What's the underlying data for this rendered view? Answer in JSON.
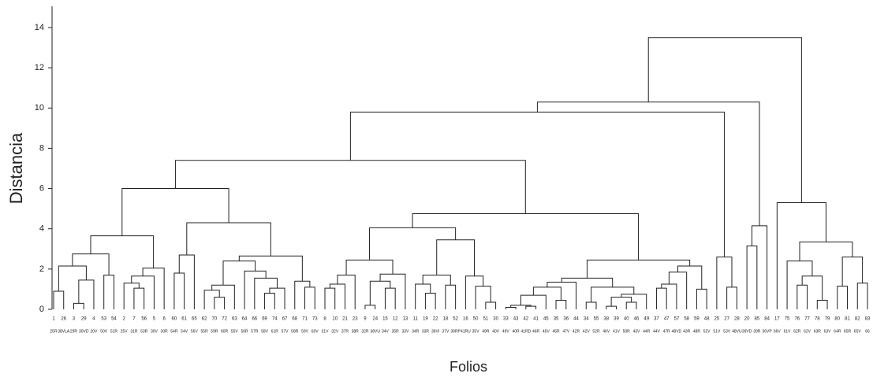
{
  "chart_data": {
    "type": "dendrogram",
    "xlabel": "Folios",
    "ylabel": "Distancia",
    "ylim": [
      0,
      15
    ],
    "yticks": [
      0,
      2,
      4,
      6,
      8,
      10,
      12,
      14
    ],
    "color": "#222222",
    "leaves": [
      "1",
      "26",
      "3",
      "29",
      "4",
      "53",
      "54",
      "2",
      "7",
      "56",
      "5",
      "6",
      "60",
      "61",
      "65",
      "62",
      "70",
      "72",
      "63",
      "64",
      "66",
      "69",
      "74",
      "67",
      "68",
      "71",
      "73",
      "8",
      "10",
      "21",
      "23",
      "9",
      "24",
      "15",
      "12",
      "13",
      "11",
      "19",
      "22",
      "18",
      "52",
      "16",
      "50",
      "51",
      "30",
      "33",
      "43",
      "42",
      "41",
      "45",
      "35",
      "36",
      "44",
      "34",
      "55",
      "38",
      "39",
      "40",
      "46",
      "49",
      "37",
      "47",
      "57",
      "58",
      "59",
      "48",
      "25",
      "27",
      "28",
      "20",
      "85",
      "84",
      "17",
      "75",
      "76",
      "77",
      "78",
      "79",
      "80",
      "81",
      "82",
      "83"
    ],
    "leaf_labels": [
      "25R",
      "38VLA",
      "29R",
      "30VD",
      "20V",
      "50V",
      "51R",
      "25V",
      "31R",
      "53R",
      "30V",
      "30R",
      "54R",
      "54V",
      "56V",
      "55R",
      "59R",
      "60R",
      "55V",
      "56R",
      "57R",
      "58V",
      "61R",
      "57V",
      "58R",
      "59V",
      "60V",
      "31V",
      "32V",
      "37R",
      "38R",
      "32R",
      "38VU",
      "34V",
      "35R",
      "33V",
      "34R",
      "33R",
      "36VI",
      "37V",
      "36RP",
      "41RU",
      "35V",
      "49R",
      "40V",
      "49V",
      "40R",
      "41RD",
      "46R",
      "45V",
      "45R",
      "47V",
      "42R",
      "42V",
      "52R",
      "46V",
      "41V",
      "50R",
      "43V",
      "44R",
      "44V",
      "47R",
      "48VD",
      "43R",
      "48R",
      "52V",
      "51V",
      "53V",
      "48VU",
      "39VD",
      "39R",
      "36VP",
      "66V",
      "61V",
      "62R",
      "62V",
      "63R",
      "63V",
      "64R",
      "65R",
      "65V",
      "66"
    ],
    "merges": [
      [
        0,
        1,
        0.9
      ],
      [
        2,
        3,
        0.3
      ],
      [
        83,
        4,
        1.45
      ],
      [
        82,
        84,
        2.15
      ],
      [
        5,
        6,
        1.7
      ],
      [
        85,
        86,
        2.75
      ],
      [
        8,
        9,
        1.05
      ],
      [
        7,
        88,
        1.3
      ],
      [
        89,
        10,
        1.65
      ],
      [
        90,
        11,
        2.05
      ],
      [
        87,
        91,
        3.65
      ],
      [
        12,
        13,
        1.8
      ],
      [
        93,
        14,
        2.7
      ],
      [
        16,
        17,
        0.6
      ],
      [
        15,
        95,
        0.95
      ],
      [
        96,
        18,
        1.2
      ],
      [
        21,
        22,
        0.8
      ],
      [
        98,
        23,
        1.05
      ],
      [
        20,
        99,
        1.55
      ],
      [
        19,
        100,
        1.9
      ],
      [
        97,
        101,
        2.4
      ],
      [
        25,
        26,
        1.1
      ],
      [
        24,
        103,
        1.4
      ],
      [
        102,
        104,
        2.65
      ],
      [
        94,
        105,
        4.3
      ],
      [
        92,
        106,
        6.0
      ],
      [
        27,
        28,
        1.05
      ],
      [
        108,
        29,
        1.25
      ],
      [
        109,
        30,
        1.7
      ],
      [
        31,
        32,
        0.2
      ],
      [
        33,
        34,
        1.05
      ],
      [
        111,
        112,
        1.4
      ],
      [
        113,
        35,
        1.75
      ],
      [
        110,
        114,
        2.45
      ],
      [
        37,
        38,
        0.8
      ],
      [
        36,
        116,
        1.25
      ],
      [
        39,
        40,
        1.2
      ],
      [
        117,
        118,
        1.7
      ],
      [
        43,
        44,
        0.35
      ],
      [
        42,
        120,
        1.15
      ],
      [
        41,
        121,
        1.65
      ],
      [
        119,
        122,
        3.45
      ],
      [
        115,
        123,
        4.05
      ],
      [
        45,
        46,
        0.1
      ],
      [
        47,
        48,
        0.15
      ],
      [
        125,
        126,
        0.2
      ],
      [
        127,
        49,
        0.7
      ],
      [
        50,
        51,
        0.45
      ],
      [
        128,
        129,
        1.1
      ],
      [
        130,
        52,
        1.35
      ],
      [
        53,
        54,
        0.35
      ],
      [
        55,
        56,
        0.15
      ],
      [
        57,
        58,
        0.35
      ],
      [
        133,
        134,
        0.6
      ],
      [
        135,
        59,
        0.75
      ],
      [
        132,
        136,
        1.1
      ],
      [
        131,
        137,
        1.55
      ],
      [
        60,
        61,
        1.05
      ],
      [
        139,
        62,
        1.25
      ],
      [
        140,
        63,
        1.85
      ],
      [
        64,
        65,
        1.0
      ],
      [
        141,
        142,
        2.15
      ],
      [
        138,
        143,
        2.45
      ],
      [
        124,
        144,
        4.75
      ],
      [
        107,
        145,
        7.4
      ],
      [
        67,
        68,
        1.1
      ],
      [
        66,
        147,
        2.6
      ],
      [
        146,
        148,
        9.8
      ],
      [
        69,
        70,
        3.15
      ],
      [
        150,
        71,
        4.15
      ],
      [
        149,
        151,
        10.3
      ],
      [
        74,
        75,
        1.2
      ],
      [
        76,
        77,
        0.45
      ],
      [
        153,
        154,
        1.65
      ],
      [
        73,
        155,
        2.4
      ],
      [
        78,
        79,
        1.15
      ],
      [
        80,
        81,
        1.3
      ],
      [
        157,
        158,
        2.6
      ],
      [
        156,
        159,
        3.35
      ],
      [
        72,
        160,
        5.3
      ],
      [
        152,
        161,
        13.5
      ]
    ]
  }
}
